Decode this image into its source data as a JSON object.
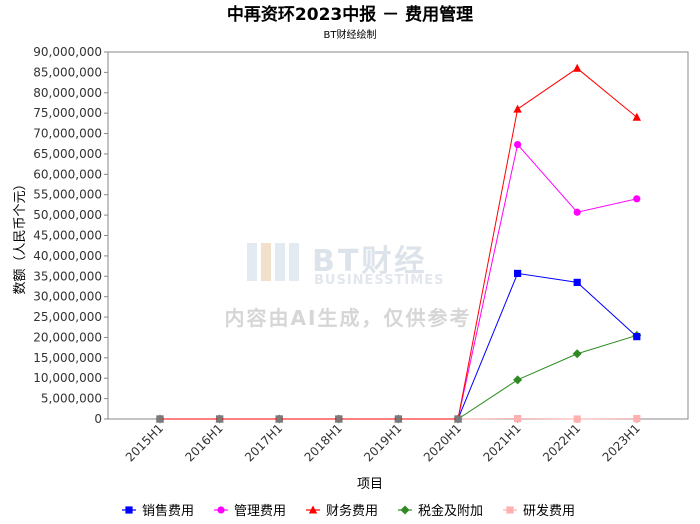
{
  "chart_data": {
    "type": "line",
    "title": "中再资环2023中报 － 费用管理",
    "subtitle": "BT财经绘制",
    "xlabel": "项目",
    "ylabel": "数额（人民币个元）",
    "ylim": [
      0,
      90000000
    ],
    "ytick_step": 5000000,
    "grid": false,
    "legend_position": "bottom",
    "categories": [
      "2015H1",
      "2016H1",
      "2017H1",
      "2018H1",
      "2019H1",
      "2020H1",
      "2021H1",
      "2022H1",
      "2023H1"
    ],
    "series": [
      {
        "name": "销售费用",
        "color": "#0000ff",
        "marker": "square",
        "values": [
          0,
          0,
          0,
          0,
          0,
          0,
          35700000,
          33500000,
          20200000
        ]
      },
      {
        "name": "管理费用",
        "color": "#ff00ff",
        "marker": "circle",
        "values": [
          0,
          0,
          0,
          0,
          0,
          0,
          67300000,
          50700000,
          54000000
        ]
      },
      {
        "name": "财务费用",
        "color": "#ff0000",
        "marker": "triangle",
        "values": [
          0,
          0,
          0,
          0,
          0,
          0,
          76000000,
          86000000,
          74000000
        ]
      },
      {
        "name": "税金及附加",
        "color": "#2e8b22",
        "marker": "diamond",
        "values": [
          0,
          0,
          0,
          0,
          0,
          0,
          9600000,
          16000000,
          20500000
        ]
      },
      {
        "name": "研发费用",
        "color": "#ffb0b0",
        "marker": "square",
        "values": [
          0,
          0,
          0,
          0,
          0,
          0,
          100000,
          0,
          100000
        ]
      }
    ]
  },
  "watermark": {
    "logo": "BT财经",
    "logo_sub": "BUSINESSTIMES",
    "note": "内容由AI生成，仅供参考"
  }
}
